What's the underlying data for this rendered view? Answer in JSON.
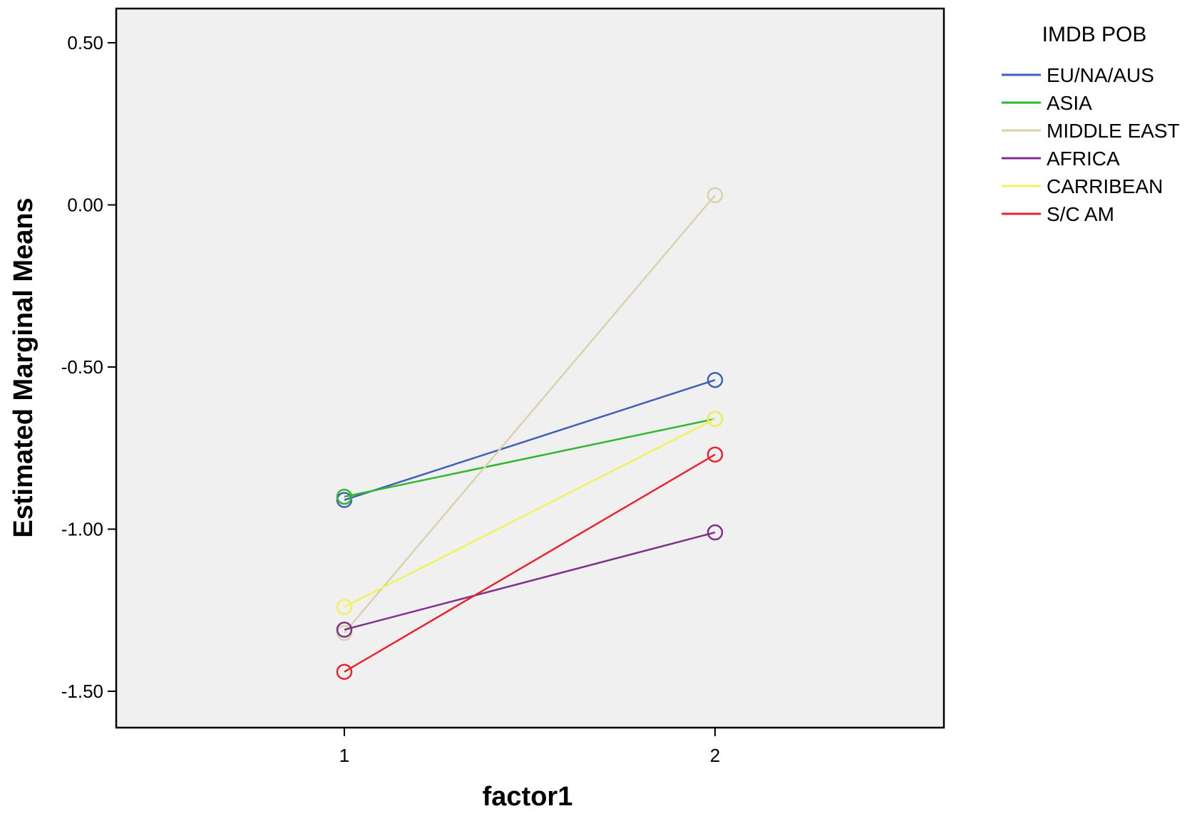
{
  "chart_data": {
    "type": "line",
    "title": "",
    "xlabel": "factor1",
    "ylabel": "Estimated Marginal Means",
    "categories": [
      "1",
      "2"
    ],
    "ylim": [
      -1.6,
      0.6
    ],
    "yticks": [
      0.5,
      0.0,
      -0.5,
      -1.0,
      -1.5
    ],
    "ytick_labels": [
      "0.50",
      "0.00",
      "-0.50",
      "-1.00",
      "-1.50"
    ],
    "grid": false,
    "legend_title": "IMDB POB",
    "legend_position": "right",
    "plot_background": "#f0f0f0",
    "series": [
      {
        "name": "EU/NA/AUS",
        "color": "#3f5fb8",
        "values": [
          -0.91,
          -0.54
        ]
      },
      {
        "name": "ASIA",
        "color": "#2eb82e",
        "values": [
          -0.9,
          -0.66
        ]
      },
      {
        "name": "MIDDLE EAST",
        "color": "#d8d2ad",
        "values": [
          -1.32,
          0.03
        ]
      },
      {
        "name": "AFRICA",
        "color": "#80308a",
        "values": [
          -1.31,
          -1.01
        ]
      },
      {
        "name": "CARRIBEAN",
        "color": "#f2f25a",
        "values": [
          -1.24,
          -0.66
        ]
      },
      {
        "name": "S/C AM",
        "color": "#e8252c",
        "values": [
          -1.44,
          -0.77
        ]
      }
    ]
  }
}
